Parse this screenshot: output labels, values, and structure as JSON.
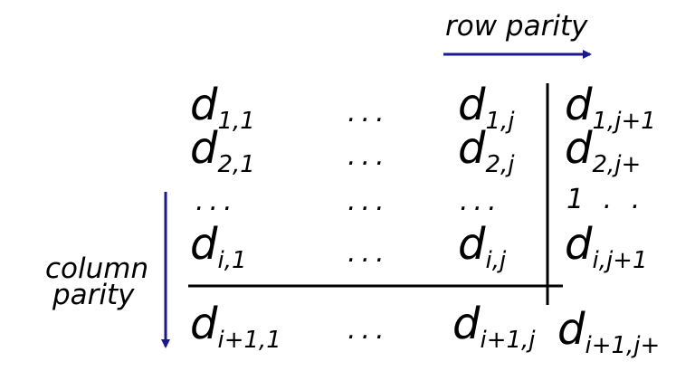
{
  "labels": {
    "row_parity": "row parity",
    "column_parity_line1": "column",
    "column_parity_line2": "parity"
  },
  "matrix": {
    "row1": {
      "c1": "d",
      "c1_sub": "1,1",
      "c2": "...",
      "c3": "d",
      "c3_sub": "1,j",
      "c4": "d",
      "c4_sub": "1,j+1"
    },
    "row2": {
      "c1": "d",
      "c1_sub": "2,1",
      "c2": "...",
      "c3": "d",
      "c3_sub": "2,j",
      "c4": "d",
      "c4_sub": "2,j+"
    },
    "row3": {
      "c1": "...",
      "c2": "...",
      "c3": "...",
      "c4": "1 . ."
    },
    "row4": {
      "c1": "d",
      "c1_sub": "i,1",
      "c2": "...",
      "c3": "d",
      "c3_sub": "i,j",
      "c4": "d",
      "c4_sub": "i,j+1"
    },
    "row5": {
      "c1": "d",
      "c1_sub": "i+1,1",
      "c2": "...",
      "c3": "d",
      "c3_sub": "i+1,j",
      "c4": "d",
      "c4_sub": "i+1,j+"
    }
  },
  "colors": {
    "arrow": "#1a1a8c",
    "text": "#000000"
  }
}
